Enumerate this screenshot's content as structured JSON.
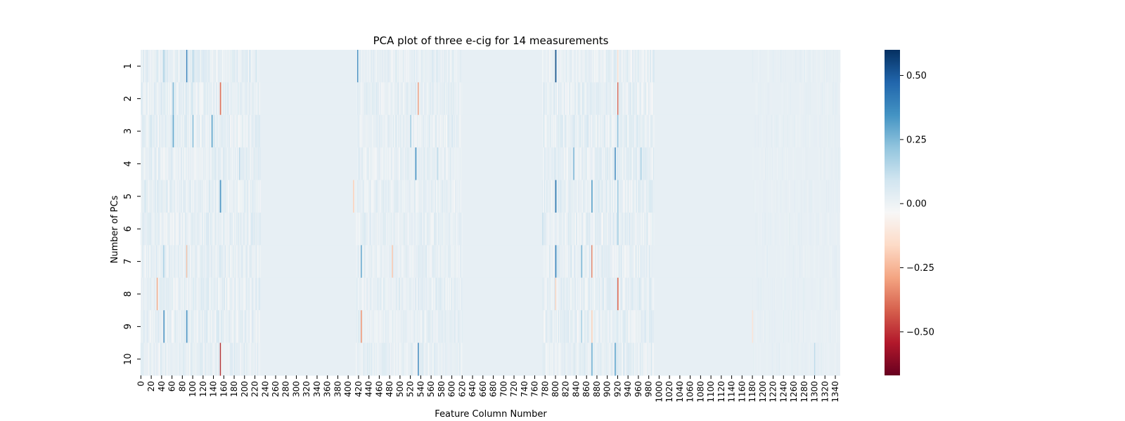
{
  "chart_data": {
    "type": "heatmap",
    "title": "PCA plot of three e-cig for 14 measurements",
    "xlabel": "Feature Column Number",
    "ylabel": "Number of PCs",
    "rows": [
      "1",
      "2",
      "3",
      "4",
      "5",
      "6",
      "7",
      "8",
      "9",
      "10"
    ],
    "n_columns": 1350,
    "x_tick_step": 20,
    "x_ticks": [
      "0",
      "20",
      "40",
      "60",
      "80",
      "100",
      "120",
      "140",
      "160",
      "180",
      "200",
      "220",
      "240",
      "260",
      "280",
      "300",
      "320",
      "340",
      "360",
      "380",
      "400",
      "420",
      "440",
      "460",
      "480",
      "500",
      "520",
      "540",
      "560",
      "580",
      "600",
      "620",
      "640",
      "660",
      "680",
      "700",
      "720",
      "740",
      "760",
      "780",
      "800",
      "820",
      "840",
      "860",
      "880",
      "900",
      "920",
      "940",
      "960",
      "980",
      "1000",
      "1020",
      "1040",
      "1060",
      "1080",
      "1100",
      "1120",
      "1140",
      "1160",
      "1180",
      "1200",
      "1220",
      "1240",
      "1260",
      "1280",
      "1300",
      "1320",
      "1340"
    ],
    "base_value": 0.02,
    "colormap": "RdBu",
    "vmin": -0.67,
    "vmax": 0.6,
    "colorbar_ticks": [
      {
        "value": 0.5,
        "label": "0.50"
      },
      {
        "value": 0.25,
        "label": "0.25"
      },
      {
        "value": 0.0,
        "label": "0.00"
      },
      {
        "value": -0.25,
        "label": "−0.25"
      },
      {
        "value": -0.5,
        "label": "−0.50"
      }
    ],
    "regions": [
      {
        "from": 0,
        "to": 230,
        "spread": 0.06,
        "density": 0.7
      },
      {
        "from": 415,
        "to": 620,
        "spread": 0.05,
        "density": 0.6
      },
      {
        "from": 775,
        "to": 990,
        "spread": 0.06,
        "density": 0.7
      },
      {
        "from": 1180,
        "to": 1349,
        "spread": 0.02,
        "density": 0.35
      }
    ],
    "highlights": [
      {
        "row": 1,
        "col": 44,
        "value": 0.2
      },
      {
        "row": 1,
        "col": 88,
        "value": 0.45
      },
      {
        "row": 1,
        "col": 100,
        "value": 0.18
      },
      {
        "row": 1,
        "col": 418,
        "value": 0.4
      },
      {
        "row": 1,
        "col": 800,
        "value": 0.6
      },
      {
        "row": 1,
        "col": 920,
        "value": -0.15
      },
      {
        "row": 2,
        "col": 62,
        "value": 0.3
      },
      {
        "row": 2,
        "col": 153,
        "value": -0.45
      },
      {
        "row": 2,
        "col": 535,
        "value": -0.35
      },
      {
        "row": 2,
        "col": 920,
        "value": -0.45
      },
      {
        "row": 3,
        "col": 62,
        "value": 0.35
      },
      {
        "row": 3,
        "col": 100,
        "value": 0.25
      },
      {
        "row": 3,
        "col": 137,
        "value": 0.35
      },
      {
        "row": 3,
        "col": 520,
        "value": 0.2
      },
      {
        "row": 3,
        "col": 920,
        "value": 0.25
      },
      {
        "row": 4,
        "col": 190,
        "value": 0.15
      },
      {
        "row": 4,
        "col": 530,
        "value": 0.4
      },
      {
        "row": 4,
        "col": 572,
        "value": 0.15
      },
      {
        "row": 4,
        "col": 835,
        "value": 0.3
      },
      {
        "row": 4,
        "col": 915,
        "value": 0.45
      },
      {
        "row": 4,
        "col": 965,
        "value": 0.2
      },
      {
        "row": 5,
        "col": 153,
        "value": 0.4
      },
      {
        "row": 5,
        "col": 410,
        "value": -0.2
      },
      {
        "row": 5,
        "col": 800,
        "value": 0.5
      },
      {
        "row": 5,
        "col": 870,
        "value": 0.35
      },
      {
        "row": 5,
        "col": 920,
        "value": 0.2
      },
      {
        "row": 6,
        "col": 775,
        "value": 0.12
      },
      {
        "row": 6,
        "col": 920,
        "value": 0.2
      },
      {
        "row": 7,
        "col": 44,
        "value": 0.2
      },
      {
        "row": 7,
        "col": 88,
        "value": -0.25
      },
      {
        "row": 7,
        "col": 425,
        "value": 0.35
      },
      {
        "row": 7,
        "col": 485,
        "value": -0.25
      },
      {
        "row": 7,
        "col": 800,
        "value": 0.45
      },
      {
        "row": 7,
        "col": 850,
        "value": 0.3
      },
      {
        "row": 7,
        "col": 870,
        "value": -0.4
      },
      {
        "row": 8,
        "col": 31,
        "value": -0.3
      },
      {
        "row": 8,
        "col": 800,
        "value": -0.2
      },
      {
        "row": 8,
        "col": 920,
        "value": -0.45
      },
      {
        "row": 9,
        "col": 44,
        "value": 0.4
      },
      {
        "row": 9,
        "col": 88,
        "value": 0.4
      },
      {
        "row": 9,
        "col": 425,
        "value": -0.35
      },
      {
        "row": 9,
        "col": 850,
        "value": 0.2
      },
      {
        "row": 9,
        "col": 870,
        "value": -0.2
      },
      {
        "row": 9,
        "col": 1180,
        "value": -0.15
      },
      {
        "row": 10,
        "col": 153,
        "value": -0.6
      },
      {
        "row": 10,
        "col": 535,
        "value": 0.45
      },
      {
        "row": 10,
        "col": 870,
        "value": 0.3
      },
      {
        "row": 10,
        "col": 915,
        "value": 0.35
      },
      {
        "row": 10,
        "col": 1300,
        "value": 0.15
      }
    ]
  }
}
